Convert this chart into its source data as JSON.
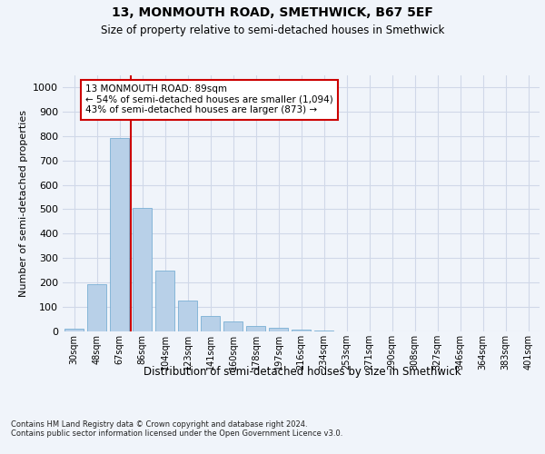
{
  "title1": "13, MONMOUTH ROAD, SMETHWICK, B67 5EF",
  "title2": "Size of property relative to semi-detached houses in Smethwick",
  "xlabel": "Distribution of semi-detached houses by size in Smethwick",
  "ylabel": "Number of semi-detached properties",
  "categories": [
    "30sqm",
    "48sqm",
    "67sqm",
    "86sqm",
    "104sqm",
    "123sqm",
    "141sqm",
    "160sqm",
    "178sqm",
    "197sqm",
    "216sqm",
    "234sqm",
    "253sqm",
    "271sqm",
    "290sqm",
    "308sqm",
    "327sqm",
    "346sqm",
    "364sqm",
    "383sqm",
    "401sqm"
  ],
  "values": [
    13,
    192,
    792,
    507,
    250,
    127,
    63,
    40,
    22,
    14,
    7,
    2,
    1,
    0,
    0,
    0,
    0,
    0,
    0,
    0,
    0
  ],
  "bar_color": "#b8d0e8",
  "bar_edge_color": "#7aafd4",
  "grid_color": "#d0d8e8",
  "vline_x_index": 2.5,
  "vline_color": "#cc0000",
  "annotation_text": "13 MONMOUTH ROAD: 89sqm\n← 54% of semi-detached houses are smaller (1,094)\n43% of semi-detached houses are larger (873) →",
  "annotation_box_color": "#ffffff",
  "annotation_box_edge": "#cc0000",
  "footer": "Contains HM Land Registry data © Crown copyright and database right 2024.\nContains public sector information licensed under the Open Government Licence v3.0.",
  "ylim": [
    0,
    1050
  ],
  "yticks": [
    0,
    100,
    200,
    300,
    400,
    500,
    600,
    700,
    800,
    900,
    1000
  ],
  "background_color": "#f0f4fa"
}
